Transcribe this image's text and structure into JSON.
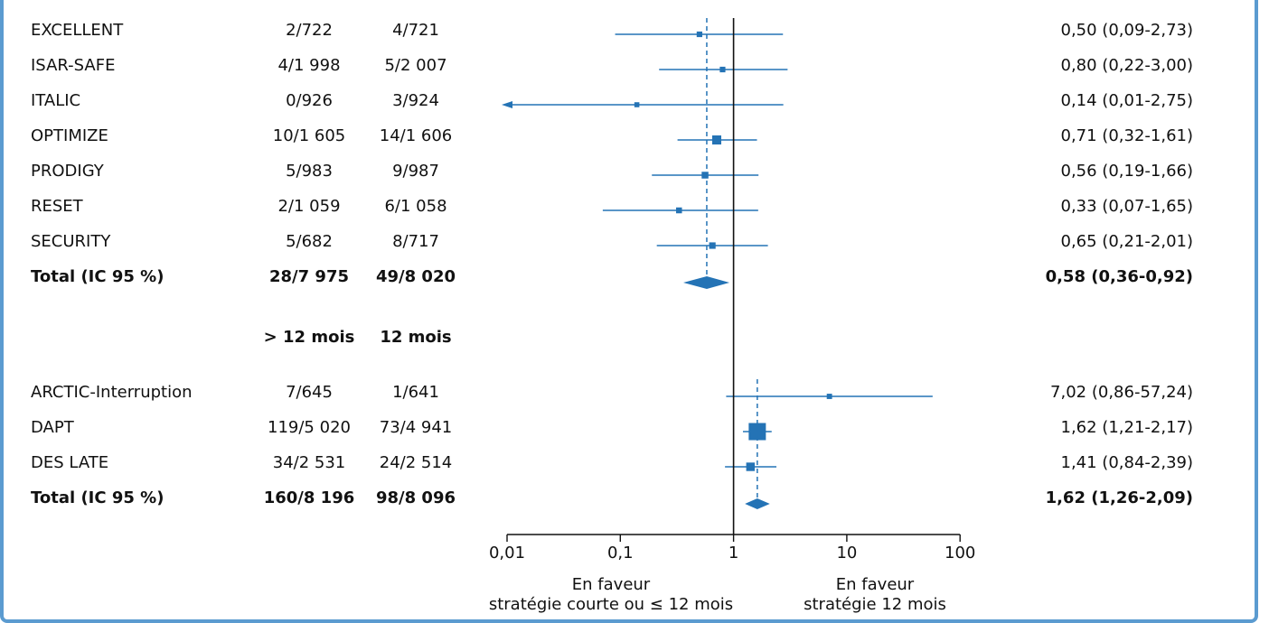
{
  "chart_data": {
    "type": "forest",
    "x_axis": {
      "scale": "log",
      "range": [
        0.01,
        100
      ],
      "ticks": [
        {
          "value": 0.01,
          "label": "0,01"
        },
        {
          "value": 0.1,
          "label": "0,1"
        },
        {
          "value": 1,
          "label": "1"
        },
        {
          "value": 10,
          "label": "10"
        },
        {
          "value": 100,
          "label": "100"
        }
      ],
      "left_caption": [
        "En faveur",
        "stratégie courte ou ≤ 12 mois"
      ],
      "right_caption": [
        "En faveur",
        "stratégie 12 mois"
      ]
    },
    "groups": [
      {
        "header": null,
        "studies": [
          {
            "name": "EXCELLENT",
            "events1": "2/722",
            "events2": "4/721",
            "or": 0.5,
            "lo": 0.09,
            "hi": 2.73,
            "label": "0,50 (0,09-2,73)",
            "weight": 1
          },
          {
            "name": "ISAR-SAFE",
            "events1": "4/1 998",
            "events2": "5/2 007",
            "or": 0.8,
            "lo": 0.22,
            "hi": 3.0,
            "label": "0,80 (0,22-3,00)",
            "weight": 1
          },
          {
            "name": "ITALIC",
            "events1": "0/926",
            "events2": "3/924",
            "or": 0.14,
            "lo": 0.01,
            "hi": 2.75,
            "label": "0,14 (0,01-2,75)",
            "weight": 0.8,
            "arrow_left": true
          },
          {
            "name": "OPTIMIZE",
            "events1": "10/1 605",
            "events2": "14/1 606",
            "or": 0.71,
            "lo": 0.32,
            "hi": 1.61,
            "label": "0,71 (0,32-1,61)",
            "weight": 2.2
          },
          {
            "name": "PRODIGY",
            "events1": "5/983",
            "events2": "9/987",
            "or": 0.56,
            "lo": 0.19,
            "hi": 1.66,
            "label": "0,56 (0,19-1,66)",
            "weight": 1.4
          },
          {
            "name": "RESET",
            "events1": "2/1 059",
            "events2": "6/1 058",
            "or": 0.33,
            "lo": 0.07,
            "hi": 1.65,
            "label": "0,33 (0,07-1,65)",
            "weight": 1.1
          },
          {
            "name": "SECURITY",
            "events1": "5/682",
            "events2": "8/717",
            "or": 0.65,
            "lo": 0.21,
            "hi": 2.01,
            "label": "0,65 (0,21-2,01)",
            "weight": 1.3
          }
        ],
        "total": {
          "name": "Total (IC 95 %)",
          "events1": "28/7 975",
          "events2": "49/8 020",
          "or": 0.58,
          "lo": 0.36,
          "hi": 0.92,
          "label": "0,58 (0,36-0,92)"
        }
      },
      {
        "header": {
          "col1": "> 12 mois",
          "col2": "12 mois"
        },
        "studies": [
          {
            "name": "ARCTIC-Interruption",
            "events1": "7/645",
            "events2": "1/641",
            "or": 7.02,
            "lo": 0.86,
            "hi": 57.24,
            "label": "7,02 (0,86-57,24)",
            "weight": 0.9
          },
          {
            "name": "DAPT",
            "events1": "119/5 020",
            "events2": "73/4 941",
            "or": 1.62,
            "lo": 1.21,
            "hi": 2.17,
            "label": "1,62 (1,21-2,17)",
            "weight": 5
          },
          {
            "name": "DES LATE",
            "events1": "34/2 531",
            "events2": "24/2 514",
            "or": 1.41,
            "lo": 0.84,
            "hi": 2.39,
            "label": "1,41 (0,84-2,39)",
            "weight": 2
          }
        ],
        "total": {
          "name": "Total (IC 95 %)",
          "events1": "160/8 196",
          "events2": "98/8 096",
          "or": 1.62,
          "lo": 1.26,
          "hi": 2.09,
          "label": "1,62 (1,26-2,09)"
        }
      }
    ]
  },
  "colors": {
    "marker": "#2473b5",
    "frame": "#5b9bd0",
    "axis": "#111111"
  }
}
